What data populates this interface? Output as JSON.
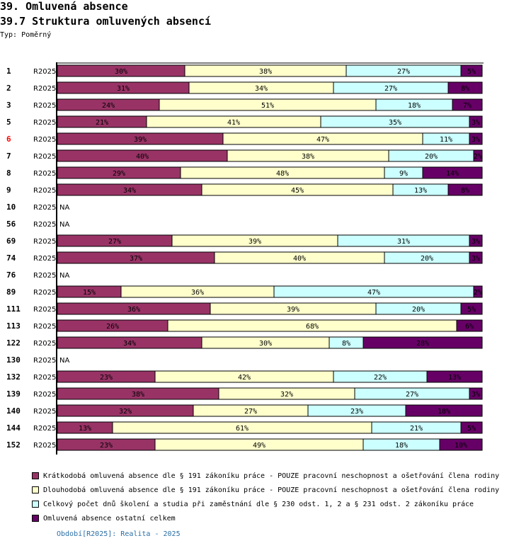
{
  "header": {
    "title": "39. Omluvená absence",
    "subtitle": "39.7 Struktura omluvených absencí",
    "type_label": "Typ: Poměrný"
  },
  "chart_data": {
    "type": "bar",
    "orientation": "horizontal",
    "stacked": true,
    "normalized": true,
    "title": "39.7 Struktura omluvených absencí",
    "xlabel": "",
    "ylabel": "",
    "xlim": [
      0,
      100
    ],
    "value_format": "{v}%",
    "highlight_color": "#ff0000",
    "na_label": "NA",
    "categories": [
      "1",
      "2",
      "3",
      "5",
      "6",
      "7",
      "8",
      "9",
      "10",
      "56",
      "69",
      "74",
      "76",
      "89",
      "111",
      "113",
      "122",
      "130",
      "132",
      "139",
      "140",
      "144",
      "152"
    ],
    "highlighted": [
      "6"
    ],
    "period_labels": [
      "R2025",
      "R2025",
      "R2025",
      "R2025",
      "R2025",
      "R2025",
      "R2025",
      "R2025",
      "R2025",
      "R2025",
      "R2025",
      "R2025",
      "R2025",
      "R2025",
      "R2025",
      "R2025",
      "R2025",
      "R2025",
      "R2025",
      "R2025",
      "R2025",
      "R2025",
      "R2025"
    ],
    "series": [
      {
        "name": "Krátkodobá omluvená absence dle § 191 zákoníku práce - POUZE pracovní neschopnost a ošetřování člena rodiny",
        "color": "#993366",
        "values": [
          30,
          31,
          24,
          21,
          39,
          40,
          29,
          34,
          null,
          null,
          27,
          37,
          null,
          15,
          36,
          26,
          34,
          null,
          23,
          38,
          32,
          13,
          23
        ]
      },
      {
        "name": "Dlouhodobá omluvená absence dle § 191 zákoníku práce - POUZE pracovní neschopnost a ošetřování člena rodiny",
        "color": "#ffffcc",
        "values": [
          38,
          34,
          51,
          41,
          47,
          38,
          48,
          45,
          null,
          null,
          39,
          40,
          null,
          36,
          39,
          68,
          30,
          null,
          42,
          32,
          27,
          61,
          49
        ]
      },
      {
        "name": "Celkový počet dnů školení a studia při zaměstnání dle § 230 odst. 1, 2 a § 231 odst. 2 zákoníku práce",
        "color": "#ccffff",
        "values": [
          27,
          27,
          18,
          35,
          11,
          20,
          9,
          13,
          null,
          null,
          31,
          20,
          null,
          47,
          20,
          0,
          8,
          null,
          22,
          27,
          23,
          21,
          18
        ]
      },
      {
        "name": "Omluvená absence ostatní celkem",
        "color": "#660066",
        "values": [
          5,
          8,
          7,
          3,
          3,
          2,
          14,
          8,
          null,
          null,
          3,
          3,
          null,
          2,
          5,
          6,
          28,
          null,
          13,
          3,
          18,
          5,
          10
        ]
      }
    ],
    "legend_position": "bottom-left",
    "grid": false
  },
  "footer": {
    "period_note": "Období[R2025]: Realita - 2025"
  }
}
